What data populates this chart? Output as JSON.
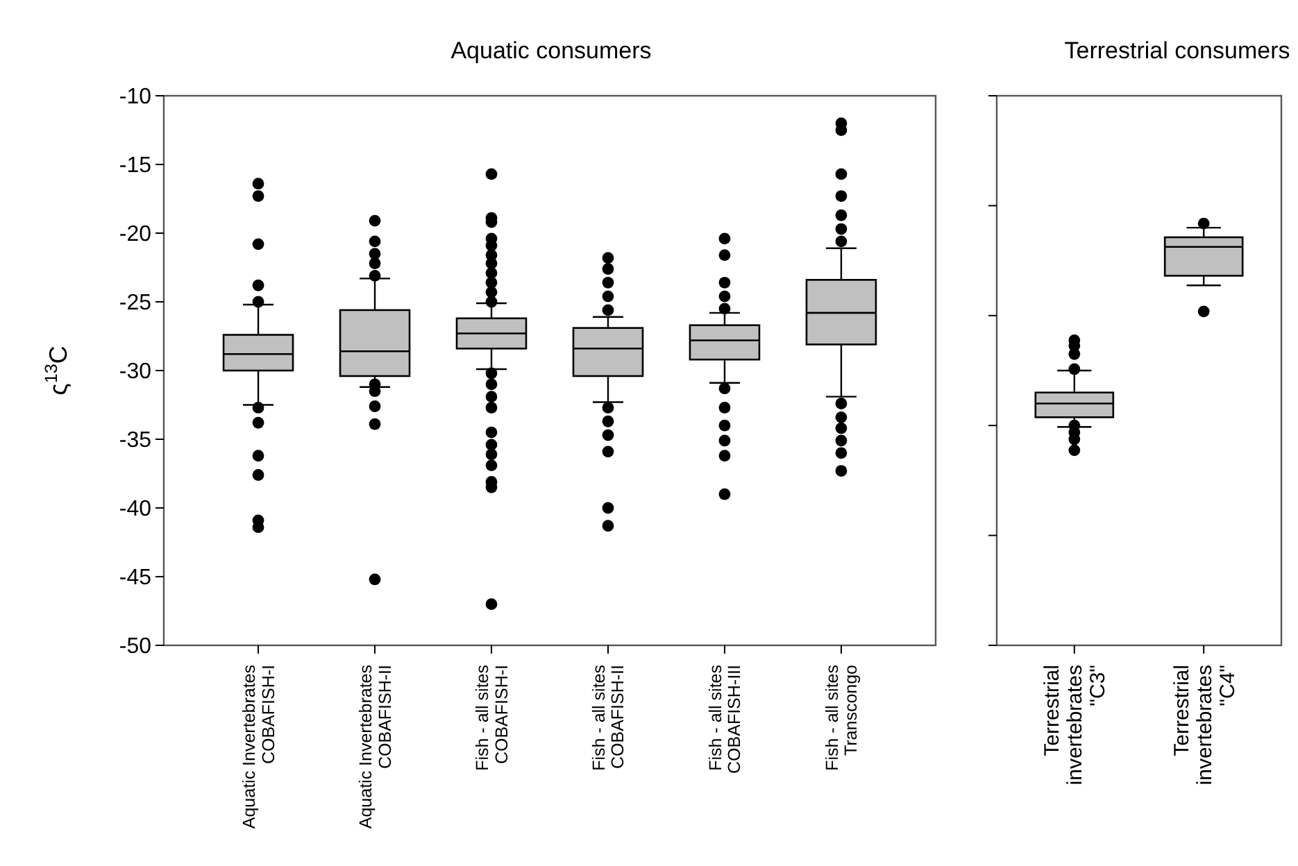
{
  "chart_data": [
    {
      "type": "box",
      "title": "Aquatic consumers",
      "ylabel": "ς$^{13}$C",
      "categories": [
        "Aquatic Invertebrates\nCOBAFISH-I",
        "Aquatic Invertebrates\nCOBAFISH-II",
        "Fish - all sites\nCOBAFISH-I",
        "Fish - all sites\nCOBAFISH-II",
        "Fish - all sites\nCOBAFISH-III",
        "Fish - all sites\nTranscongo"
      ],
      "color": "#c0c0c0",
      "ylim": [
        -50,
        -10
      ],
      "yticks": [
        -50,
        -45,
        -40,
        -35,
        -30,
        -25,
        -20,
        -15,
        -10
      ],
      "boxes": [
        {
          "low": -32.5,
          "q1": -30.0,
          "median": -28.8,
          "q3": -27.4,
          "high": -25.2,
          "outliers": [
            -16.4,
            -17.3,
            -20.8,
            -23.8,
            -25.0,
            -32.7,
            -33.8,
            -36.2,
            -37.6,
            -40.9,
            -41.4
          ]
        },
        {
          "low": -31.2,
          "q1": -30.4,
          "median": -28.6,
          "q3": -25.6,
          "high": -23.3,
          "outliers": [
            -19.1,
            -20.6,
            -21.5,
            -22.2,
            -23.1,
            -31.0,
            -31.5,
            -32.6,
            -33.9,
            -45.2
          ]
        },
        {
          "low": -29.9,
          "q1": -28.4,
          "median": -27.3,
          "q3": -26.2,
          "high": -25.1,
          "outliers": [
            -15.7,
            -18.9,
            -19.2,
            -20.4,
            -20.9,
            -21.6,
            -22.2,
            -22.9,
            -23.6,
            -24.3,
            -25.0,
            -30.2,
            -31.0,
            -31.9,
            -32.7,
            -34.5,
            -35.4,
            -36.1,
            -36.9,
            -38.1,
            -38.5,
            -47.0
          ]
        },
        {
          "low": -32.3,
          "q1": -30.4,
          "median": -28.4,
          "q3": -26.9,
          "high": -26.1,
          "outliers": [
            -21.8,
            -22.6,
            -23.6,
            -24.6,
            -25.6,
            -32.7,
            -33.7,
            -34.7,
            -35.9,
            -40.0,
            -41.3
          ]
        },
        {
          "low": -30.9,
          "q1": -29.2,
          "median": -27.8,
          "q3": -26.7,
          "high": -25.8,
          "outliers": [
            -20.4,
            -21.6,
            -23.6,
            -24.6,
            -25.5,
            -31.3,
            -32.7,
            -34.0,
            -35.1,
            -36.2,
            -39.0
          ]
        },
        {
          "low": -31.9,
          "q1": -28.1,
          "median": -25.8,
          "q3": -23.4,
          "high": -21.1,
          "outliers": [
            -12.0,
            -12.5,
            -15.7,
            -17.3,
            -18.7,
            -19.7,
            -20.6,
            -32.4,
            -33.4,
            -34.2,
            -35.1,
            -36.0,
            -37.3
          ]
        }
      ]
    },
    {
      "type": "box",
      "title": "Terrestrial consumers",
      "categories": [
        "Terrestrial\ninvertebrates\n\"C3\"",
        "Terrestrial\ninvertebrates\n\"C4\""
      ],
      "color": "#c0c0c0",
      "ylim": [
        -50,
        -10
      ],
      "yticks": [
        {
          "value": -50,
          "label": null
        },
        {
          "value": -42,
          "label": null
        },
        {
          "value": -34,
          "label": null
        },
        {
          "value": -26,
          "label": null
        },
        {
          "value": -18,
          "label": null
        },
        {
          "value": -10,
          "label": null
        }
      ],
      "tick_labels": "x",
      "boxes": [
        {
          "low": -34.1,
          "q1": -33.4,
          "median": -32.4,
          "q3": -31.6,
          "high": -30.0,
          "outliers": [
            -27.8,
            -28.2,
            -28.8,
            -29.9,
            -34.0,
            -34.5,
            -35.0,
            -35.8
          ]
        },
        {
          "low": -23.8,
          "q1": -23.1,
          "median": -21.0,
          "q3": -20.3,
          "high": -19.6,
          "outliers": [
            -19.3,
            -25.7
          ]
        }
      ]
    }
  ]
}
